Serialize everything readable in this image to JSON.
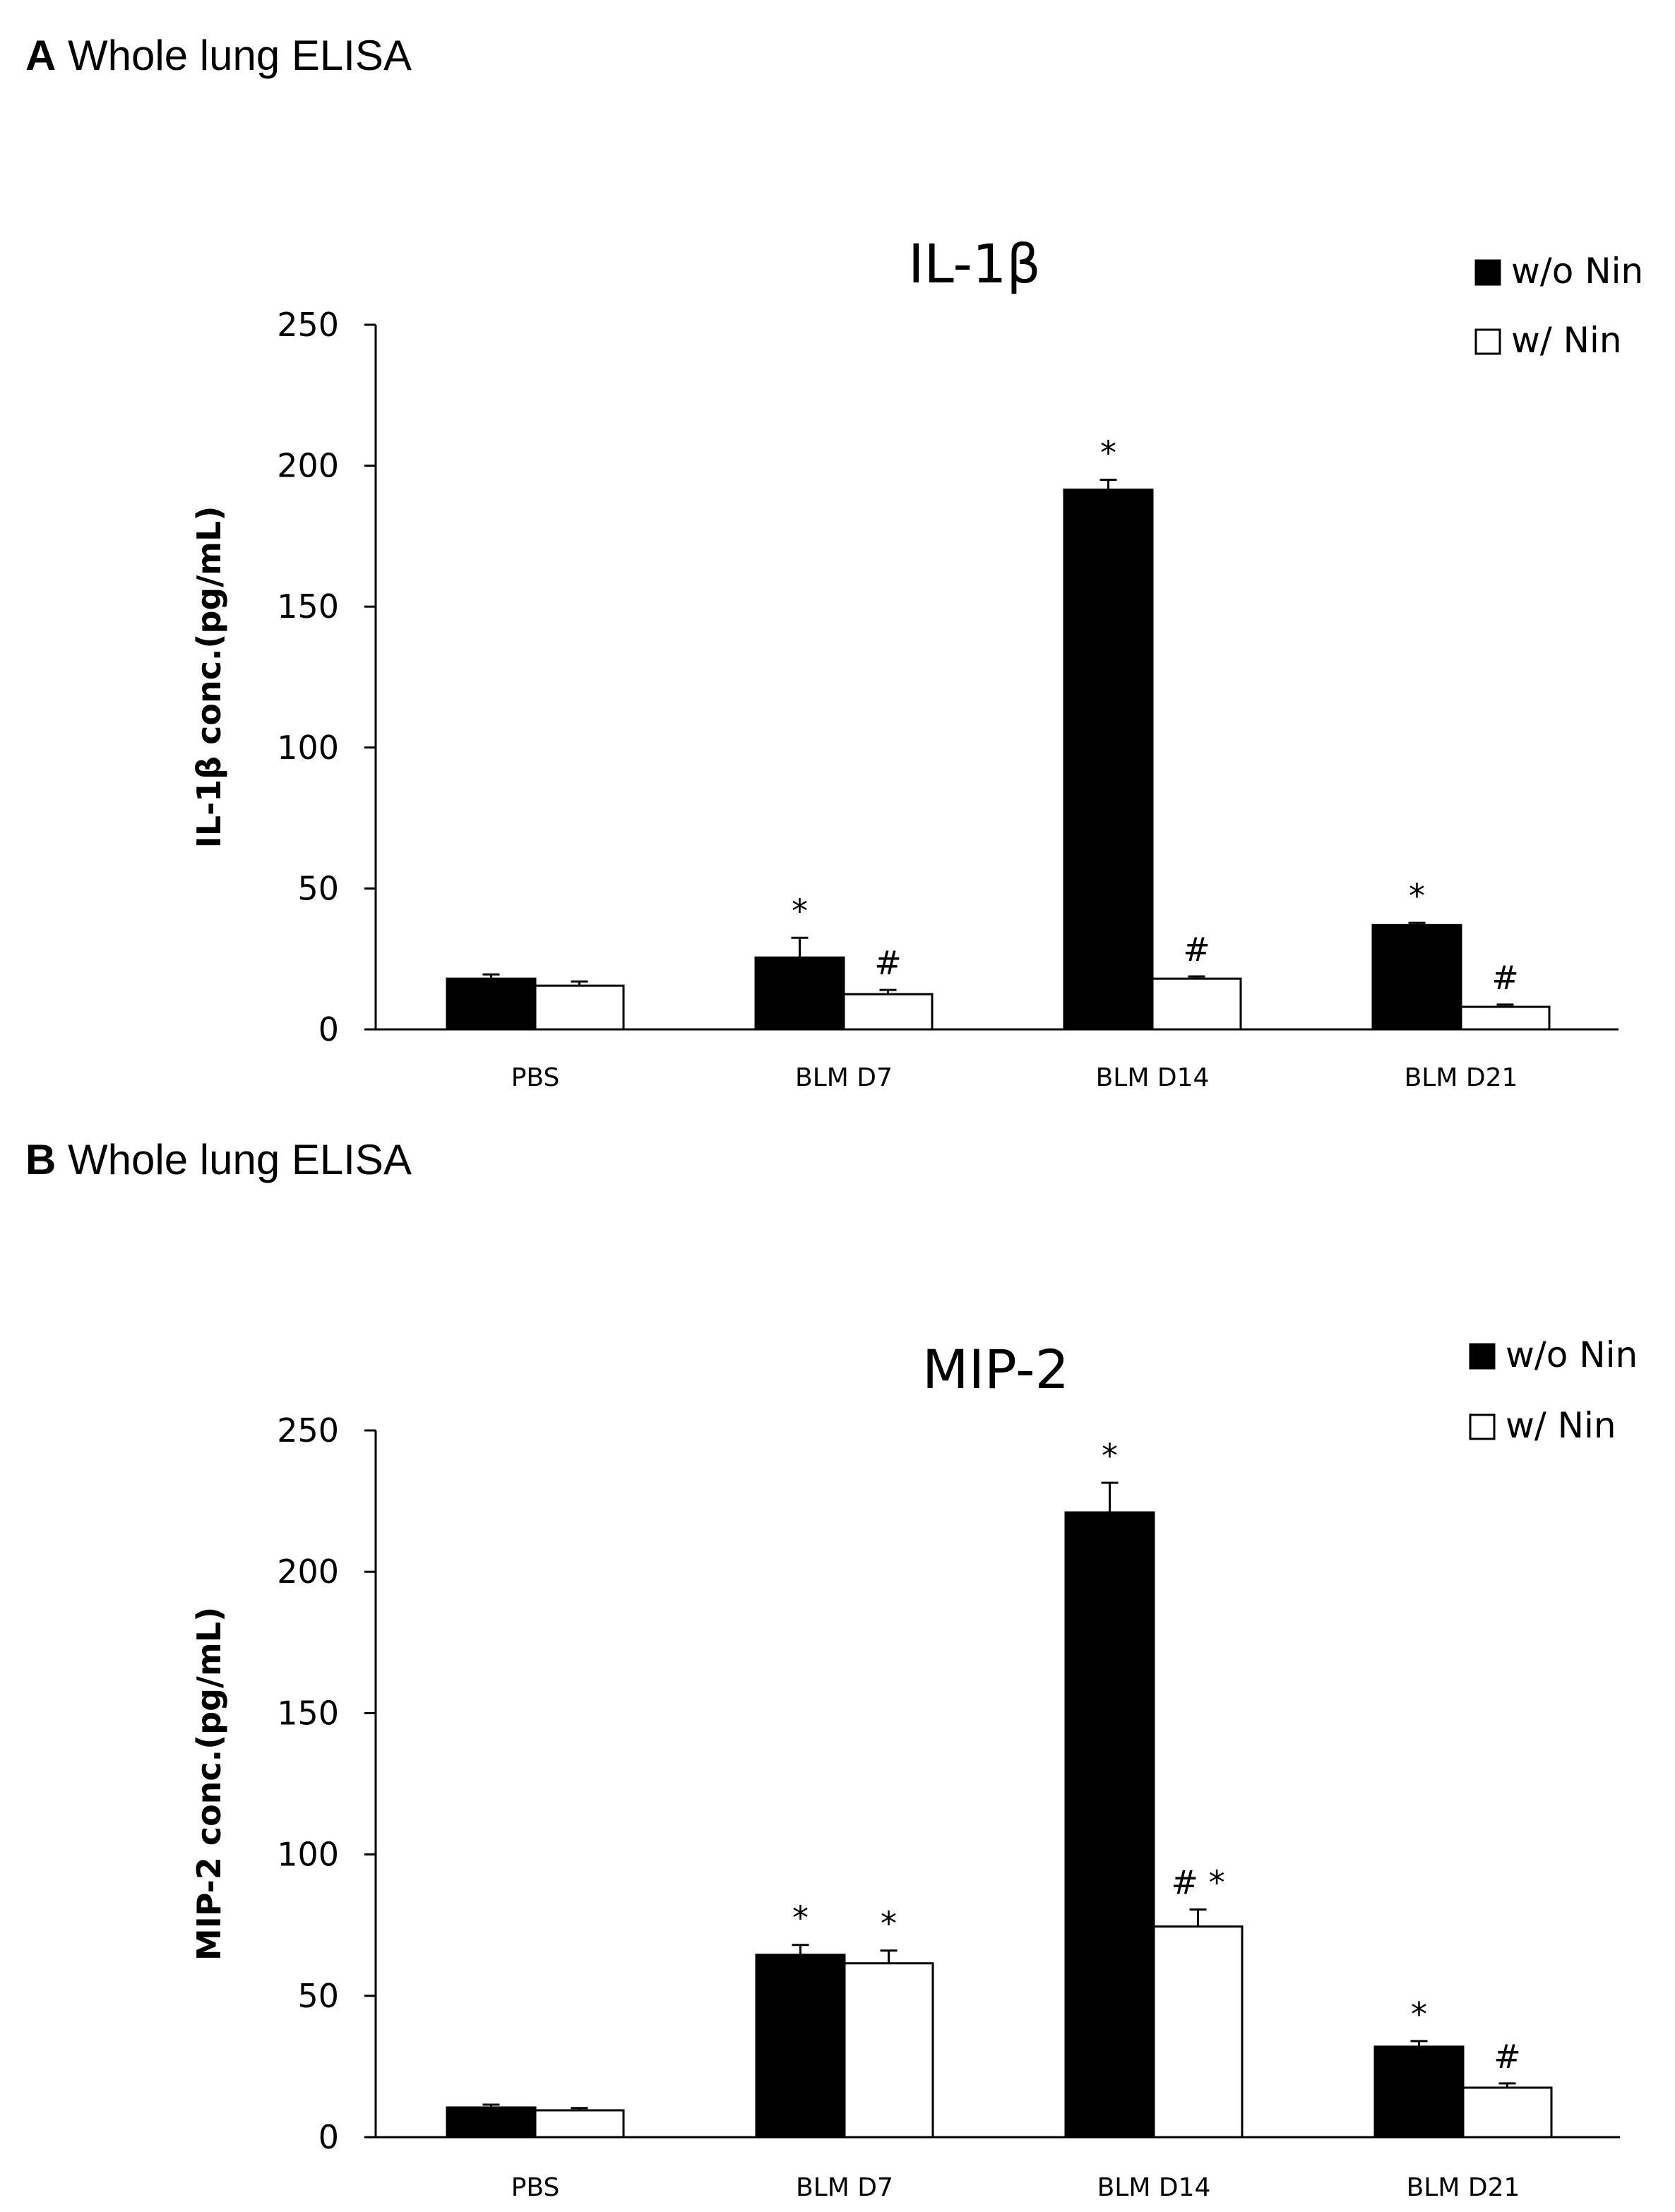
{
  "panels": [
    {
      "id": "A",
      "label_letter": "A",
      "label_text": "Whole lung ELISA"
    },
    {
      "id": "B",
      "label_letter": "B",
      "label_text": "Whole lung ELISA"
    }
  ],
  "chart_data": [
    {
      "type": "bar",
      "title": "IL-1β",
      "xlabel": "",
      "ylabel": "IL-1β conc.(pg/mL)",
      "ylim": [
        0,
        250
      ],
      "yticks": [
        0,
        50,
        100,
        150,
        200,
        250
      ],
      "grid": false,
      "legend_position": "top-right",
      "categories": [
        "PBS",
        "BLM D7",
        "BLM D14",
        "BLM D21"
      ],
      "series": [
        {
          "name": "w/o Nin",
          "color": "#000000",
          "values": [
            18,
            25.5,
            191.5,
            37
          ],
          "errors": [
            1.5,
            7,
            3.5,
            0.8
          ],
          "annotations": [
            "",
            "*",
            "*",
            "*"
          ]
        },
        {
          "name": "w/ Nin",
          "color": "#ffffff",
          "values": [
            15.5,
            12.5,
            18,
            8
          ],
          "errors": [
            1.5,
            1.5,
            0.8,
            0.8
          ],
          "annotations": [
            "",
            "#",
            "#",
            "#"
          ]
        }
      ]
    },
    {
      "type": "bar",
      "title": "MIP-2",
      "xlabel": "",
      "ylabel": "MIP-2 conc.(pg/mL)",
      "ylim": [
        0,
        250
      ],
      "yticks": [
        0,
        50,
        100,
        150,
        200,
        250
      ],
      "grid": false,
      "legend_position": "top-right",
      "categories": [
        "PBS",
        "BLM D7",
        "BLM D14",
        "BLM D21"
      ],
      "series": [
        {
          "name": "w/o Nin",
          "color": "#000000",
          "values": [
            10.5,
            64.5,
            221,
            32
          ],
          "errors": [
            1,
            3.5,
            10.5,
            2
          ],
          "annotations": [
            "",
            "*",
            "*",
            "*"
          ]
        },
        {
          "name": "w/ Nin",
          "color": "#ffffff",
          "values": [
            9.5,
            61.5,
            74.5,
            17.5
          ],
          "errors": [
            0.8,
            4.5,
            6,
            1.5
          ],
          "annotations": [
            "",
            "*",
            "# *",
            "#"
          ]
        }
      ]
    }
  ]
}
